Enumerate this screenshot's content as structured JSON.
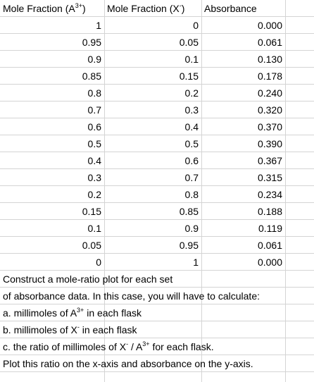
{
  "headers": {
    "col1": {
      "pre": "Mole Fraction (A",
      "sup": "3+",
      "post": ")"
    },
    "col2": {
      "pre": "Mole Fraction (X",
      "sup": "-",
      "post": ")"
    },
    "col3": "Absorbance"
  },
  "rows": [
    [
      "1",
      "0",
      "0.000"
    ],
    [
      "0.95",
      "0.05",
      "0.061"
    ],
    [
      "0.9",
      "0.1",
      "0.130"
    ],
    [
      "0.85",
      "0.15",
      "0.178"
    ],
    [
      "0.8",
      "0.2",
      "0.240"
    ],
    [
      "0.7",
      "0.3",
      "0.320"
    ],
    [
      "0.6",
      "0.4",
      "0.370"
    ],
    [
      "0.5",
      "0.5",
      "0.390"
    ],
    [
      "0.4",
      "0.6",
      "0.367"
    ],
    [
      "0.3",
      "0.7",
      "0.315"
    ],
    [
      "0.2",
      "0.8",
      "0.234"
    ],
    [
      "0.15",
      "0.85",
      "0.188"
    ],
    [
      "0.1",
      "0.9",
      "0.119"
    ],
    [
      "0.05",
      "0.95",
      "0.061"
    ],
    [
      "0",
      "1",
      "0.000"
    ]
  ],
  "notes": {
    "line1": "Construct a mole-ratio plot for each set",
    "line2": "of absorbance data. In this case, you will have to calculate:",
    "line3": {
      "pre": "a. millimoles of A",
      "sup": "3+",
      "post": " in each flask"
    },
    "line4": {
      "pre": "b. millimoles of X",
      "sup": "-",
      "post": " in each flask"
    },
    "line5": {
      "pre": "c. the ratio of millimoles of X",
      "sup1": "-",
      "mid": " / A",
      "sup2": "3+",
      "post": " for each flask."
    },
    "line6": "Plot this ratio on the x-axis and absorbance on the y-axis."
  }
}
